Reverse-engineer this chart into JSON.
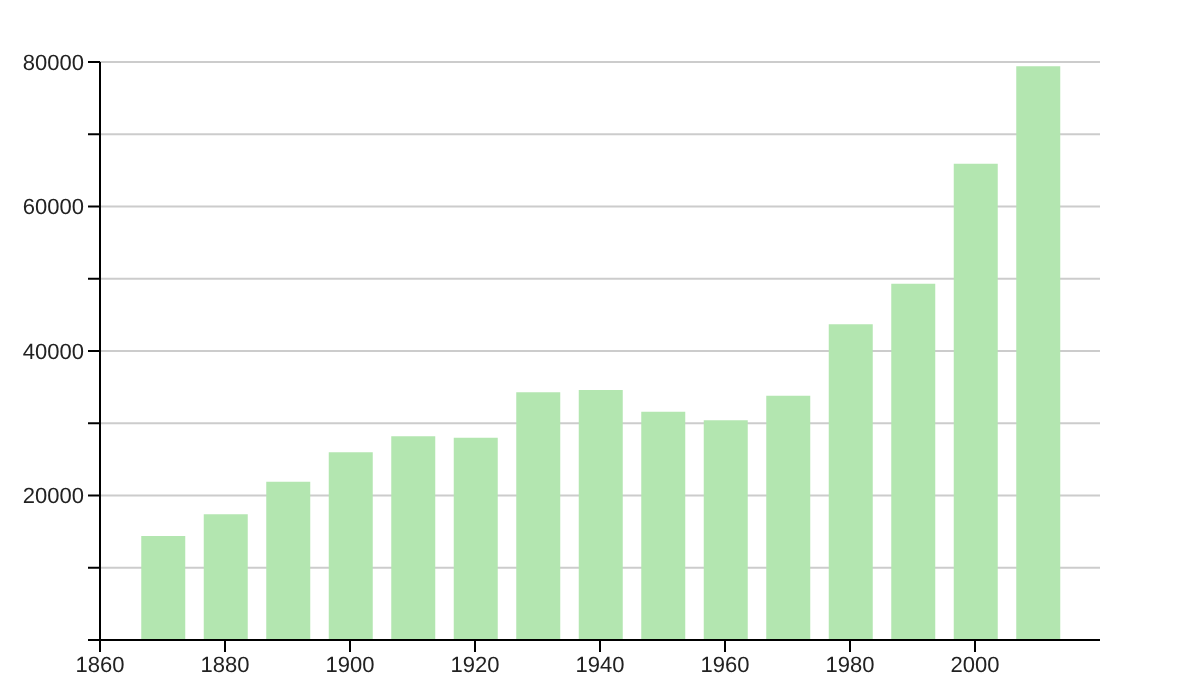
{
  "chart_data": {
    "type": "bar",
    "x": [
      1870,
      1880,
      1890,
      1900,
      1910,
      1920,
      1930,
      1940,
      1950,
      1960,
      1970,
      1980,
      1990,
      2000,
      2010
    ],
    "values": [
      14400,
      17400,
      21900,
      26000,
      28200,
      28000,
      34300,
      34600,
      31600,
      30400,
      33800,
      43700,
      49300,
      65900,
      79400
    ],
    "color": "#b3e6b0",
    "xlim": [
      1860,
      2020
    ],
    "xticks": [
      1860,
      1880,
      1900,
      1920,
      1940,
      1960,
      1980,
      2000
    ],
    "ylim": [
      0,
      80000
    ],
    "yticks": [
      {
        "value": 0,
        "label": null
      },
      {
        "value": 10000,
        "label": null
      },
      20000,
      {
        "value": 30000,
        "label": null
      },
      40000,
      {
        "value": 50000,
        "label": null
      },
      60000,
      {
        "value": 70000,
        "label": null
      },
      80000
    ],
    "grid": "y"
  }
}
